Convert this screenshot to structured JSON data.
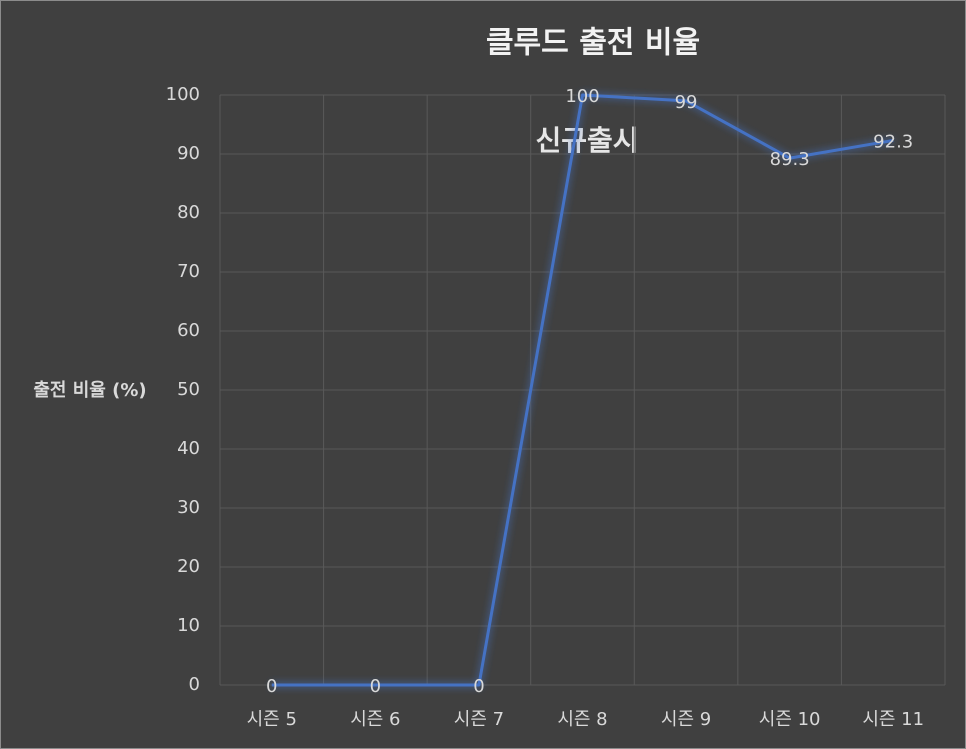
{
  "chart_data": {
    "type": "line",
    "title": "클루드 출전 비율",
    "y_label": "출전 비율 (%)",
    "annotation": "신규출시",
    "categories": [
      "시즌 5",
      "시즌 6",
      "시즌 7",
      "시즌 8",
      "시즌 9",
      "시즌 10",
      "시즌 11"
    ],
    "series": [
      {
        "name": "출전 비율",
        "color": "#4472c4",
        "values": [
          0,
          0,
          0,
          100,
          99,
          89.3,
          92.3
        ]
      }
    ],
    "ylim": [
      0,
      100
    ],
    "yticks": [
      0,
      10,
      20,
      30,
      40,
      50,
      60,
      70,
      80,
      90,
      100
    ],
    "grid": true,
    "data_labels": true,
    "legend": false
  }
}
